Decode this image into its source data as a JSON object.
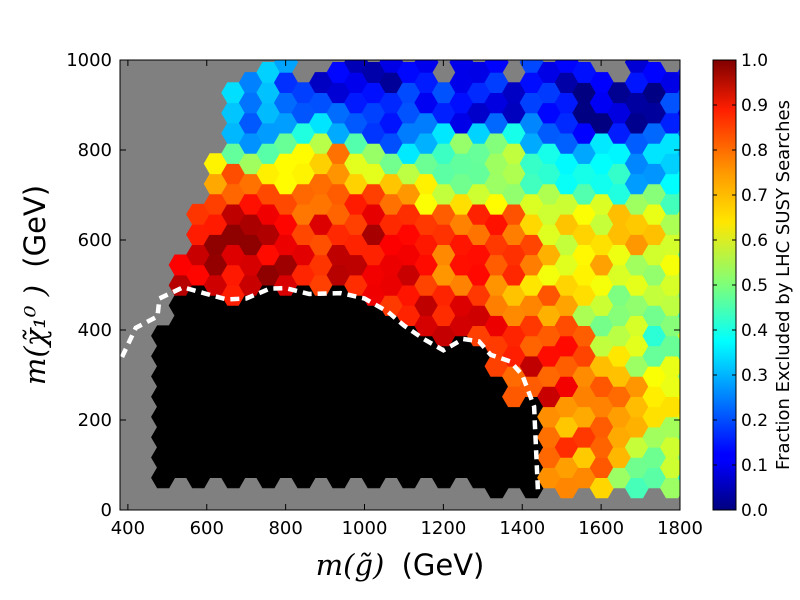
{
  "chart_data": {
    "type": "heatmap",
    "title": "",
    "xlabel": {
      "math": "m(g̃)",
      "unit": "(GeV)"
    },
    "ylabel": {
      "math": "m(χ̃₁⁰ )",
      "unit": "(GeV)"
    },
    "xlim": [
      380,
      1800
    ],
    "ylim": [
      0,
      1000
    ],
    "xticks": [
      400,
      600,
      800,
      1000,
      1200,
      1400,
      1600,
      1800
    ],
    "yticks": [
      0,
      200,
      400,
      600,
      800,
      1000
    ],
    "background_color": "#808080",
    "colormap": "jet",
    "colorbar": {
      "label": "Fraction Excluded by LHC SUSY Searches",
      "range": [
        0.0,
        1.0
      ],
      "ticks": [
        0.0,
        0.1,
        0.2,
        0.3,
        0.4,
        0.5,
        0.6,
        0.7,
        0.8,
        0.9,
        1.0
      ],
      "tick_labels": [
        "0.0",
        "0.1",
        "0.2",
        "0.3",
        "0.4",
        "0.5",
        "0.6",
        "0.7",
        "0.8",
        "0.9",
        "1.0"
      ]
    },
    "fully_excluded_color": "#000000",
    "anchor_values": [
      {
        "x": 700,
        "y": 150,
        "value": 1.0
      },
      {
        "x": 1000,
        "y": 200,
        "value": 1.0
      },
      {
        "x": 1200,
        "y": 300,
        "value": 0.95
      },
      {
        "x": 1300,
        "y": 150,
        "value": 0.9
      },
      {
        "x": 1400,
        "y": 300,
        "value": 0.85
      },
      {
        "x": 1600,
        "y": 150,
        "value": 0.75
      },
      {
        "x": 1750,
        "y": 100,
        "value": 0.5
      },
      {
        "x": 700,
        "y": 600,
        "value": 0.95
      },
      {
        "x": 1000,
        "y": 600,
        "value": 0.9
      },
      {
        "x": 1300,
        "y": 600,
        "value": 0.8
      },
      {
        "x": 1600,
        "y": 600,
        "value": 0.65
      },
      {
        "x": 1750,
        "y": 450,
        "value": 0.5
      },
      {
        "x": 600,
        "y": 720,
        "value": 0.75
      },
      {
        "x": 900,
        "y": 750,
        "value": 0.7
      },
      {
        "x": 1300,
        "y": 780,
        "value": 0.5
      },
      {
        "x": 1600,
        "y": 760,
        "value": 0.35
      },
      {
        "x": 500,
        "y": 800,
        "value": 0.45
      },
      {
        "x": 700,
        "y": 880,
        "value": 0.25
      },
      {
        "x": 1000,
        "y": 900,
        "value": 0.15
      },
      {
        "x": 1300,
        "y": 900,
        "value": 0.1
      },
      {
        "x": 1600,
        "y": 900,
        "value": 0.05
      },
      {
        "x": 1000,
        "y": 980,
        "value": 0.05
      }
    ],
    "exclusion_contour": {
      "style": "white dashed",
      "points": [
        {
          "x": 385,
          "y": 340
        },
        {
          "x": 420,
          "y": 405
        },
        {
          "x": 475,
          "y": 430
        },
        {
          "x": 480,
          "y": 470
        },
        {
          "x": 540,
          "y": 495
        },
        {
          "x": 600,
          "y": 480
        },
        {
          "x": 650,
          "y": 468
        },
        {
          "x": 700,
          "y": 470
        },
        {
          "x": 760,
          "y": 492
        },
        {
          "x": 800,
          "y": 493
        },
        {
          "x": 860,
          "y": 480
        },
        {
          "x": 940,
          "y": 482
        },
        {
          "x": 1000,
          "y": 470
        },
        {
          "x": 1060,
          "y": 440
        },
        {
          "x": 1100,
          "y": 410
        },
        {
          "x": 1150,
          "y": 380
        },
        {
          "x": 1200,
          "y": 355
        },
        {
          "x": 1250,
          "y": 380
        },
        {
          "x": 1290,
          "y": 375
        },
        {
          "x": 1320,
          "y": 345
        },
        {
          "x": 1370,
          "y": 330
        },
        {
          "x": 1400,
          "y": 300
        },
        {
          "x": 1430,
          "y": 230
        },
        {
          "x": 1440,
          "y": 40
        }
      ]
    }
  }
}
